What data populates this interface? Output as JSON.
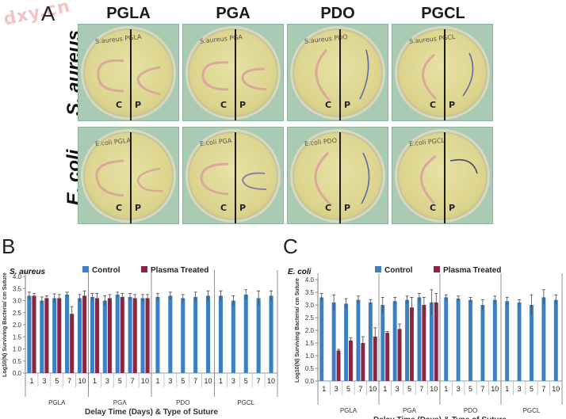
{
  "watermark": "dxy.cn",
  "panel_a": {
    "letter": "A",
    "columns": [
      "PGLA",
      "PGA",
      "PDO",
      "PGCL"
    ],
    "rows": [
      "S. aureus",
      "E. coli"
    ],
    "dish_notes": {
      "s_aureus": [
        "S.aureus PGLA",
        "S.aureus PGA",
        "S.aureus PDO",
        "S.aureus PGCL"
      ],
      "e_coli": [
        "E.coli PGLA",
        "E.coli PGA",
        "E.coli PDO",
        "E.coli PGCL"
      ]
    },
    "side_labels": [
      "C",
      "P"
    ],
    "colors": {
      "plate_bg": "#a9cbb4",
      "agar": "#dcd48d",
      "suture_braided": "#d9a99a",
      "suture_mono": "#5c6aa8"
    }
  },
  "chart_data": [
    {
      "panel_letter": "B",
      "type": "bar",
      "organism_label": "S. aureus",
      "legend": [
        {
          "name": "Control",
          "color": "#3b80c2"
        },
        {
          "name": "Plasma Treated",
          "color": "#8b2543"
        }
      ],
      "legend_position": "top",
      "ylabel": "Log10(N) Surviving Bacteria/ cm Suture",
      "xlabel": "Delay Time (Days) & Type of Suture",
      "ylim": [
        0,
        4.0
      ],
      "yticks": [
        "0.0",
        "0.5",
        "1.0",
        "1.5",
        "2.0",
        "2.5",
        "3.0",
        "3.5",
        "4.0"
      ],
      "grid": false,
      "groups": [
        "PGLA",
        "PGA",
        "PDO",
        "PGCL"
      ],
      "categories": [
        "1",
        "3",
        "5",
        "7",
        "10"
      ],
      "series": [
        {
          "name": "Control",
          "values": [
            [
              3.2,
              3.0,
              3.1,
              3.25,
              3.1
            ],
            [
              3.15,
              3.0,
              3.25,
              3.15,
              3.1
            ],
            [
              3.15,
              3.2,
              3.1,
              3.15,
              3.2
            ],
            [
              3.2,
              3.0,
              3.25,
              3.1,
              3.2
            ]
          ],
          "errors": [
            [
              0.15,
              0.15,
              0.18,
              0.1,
              0.15
            ],
            [
              0.15,
              0.2,
              0.1,
              0.15,
              0.15
            ],
            [
              0.15,
              0.15,
              0.15,
              0.2,
              0.2
            ],
            [
              0.2,
              0.2,
              0.2,
              0.3,
              0.2
            ]
          ]
        },
        {
          "name": "Plasma Treated",
          "values": [
            [
              3.2,
              3.1,
              3.1,
              2.45,
              3.2
            ],
            [
              3.1,
              3.1,
              3.15,
              3.1,
              3.1
            ],
            null,
            null
          ],
          "errors": [
            [
              0.1,
              0.1,
              0.15,
              0.3,
              0.2
            ],
            [
              0.2,
              0.15,
              0.15,
              0.15,
              0.15
            ],
            null,
            null
          ]
        }
      ]
    },
    {
      "panel_letter": "C",
      "type": "bar",
      "organism_label": "E. coli",
      "legend": [
        {
          "name": "Control",
          "color": "#3b80c2"
        },
        {
          "name": "Plasma Treated",
          "color": "#8b2543"
        }
      ],
      "legend_position": "top",
      "ylabel": "Log10(N) Surviving Bacteria/ cm Suture",
      "xlabel": "Delay Time (Days) & Type of Suture",
      "ylim": [
        0,
        4.0
      ],
      "yticks": [
        "0.0",
        "0.5",
        "1.0",
        "1.5",
        "2.0",
        "2.5",
        "3.0",
        "3.5",
        "4.0"
      ],
      "grid": false,
      "groups": [
        "PGLA",
        "PGA",
        "PDO",
        "PGCL"
      ],
      "categories": [
        "1",
        "3",
        "5",
        "7",
        "10"
      ],
      "series": [
        {
          "name": "Control",
          "values": [
            [
              3.3,
              3.1,
              3.05,
              3.2,
              3.1
            ],
            [
              3.0,
              3.15,
              3.2,
              3.3,
              3.1
            ],
            [
              3.3,
              3.25,
              3.2,
              3.0,
              3.2
            ],
            [
              3.15,
              3.1,
              3.0,
              3.3,
              3.2
            ]
          ],
          "errors": [
            [
              0.15,
              0.3,
              0.2,
              0.15,
              0.1
            ],
            [
              0.3,
              0.15,
              0.15,
              0.15,
              0.5
            ],
            [
              0.1,
              0.1,
              0.1,
              0.2,
              0.15
            ],
            [
              0.15,
              0.1,
              0.4,
              0.3,
              0.2
            ]
          ]
        },
        {
          "name": "Plasma Treated",
          "values": [
            [
              null,
              1.2,
              1.6,
              1.5,
              1.75
            ],
            [
              1.9,
              2.05,
              2.9,
              3.0,
              3.1
            ],
            null,
            null
          ],
          "errors": [
            [
              null,
              0.05,
              0.1,
              0.25,
              0.35
            ],
            [
              0.05,
              0.2,
              0.4,
              0.3,
              0.35
            ],
            null,
            null
          ]
        }
      ]
    }
  ]
}
